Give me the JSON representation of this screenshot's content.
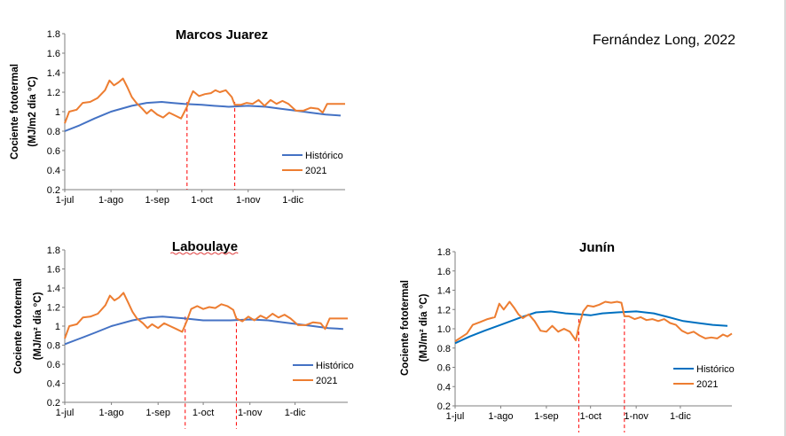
{
  "credit": "Fernández Long, 2022",
  "chart_data": [
    {
      "type": "line",
      "title": "Marcos Juarez",
      "title_underline": false,
      "ylabel_line1": "Cociente fototermal",
      "ylabel_line2": "(MJ/m2 día °C)",
      "ylim": [
        0.2,
        1.8
      ],
      "yticks": [
        "0.2",
        "0.4",
        "0.6",
        "0.8",
        "1",
        "1.2",
        "1.4",
        "1.6",
        "1.8"
      ],
      "xdomain": [
        0,
        188
      ],
      "xticks": [
        {
          "label": "1-jul",
          "x": 0
        },
        {
          "label": "1-ago",
          "x": 31
        },
        {
          "label": "1-sep",
          "x": 62
        },
        {
          "label": "1-oct",
          "x": 92
        },
        {
          "label": "1-nov",
          "x": 123
        },
        {
          "label": "1-dic",
          "x": 153
        }
      ],
      "vlines": [
        82,
        114
      ],
      "series": [
        {
          "name": "Histórico",
          "color": "#4472c4",
          "points": [
            [
              0,
              0.8
            ],
            [
              10,
              0.86
            ],
            [
              20,
              0.93
            ],
            [
              31,
              1.0
            ],
            [
              45,
              1.06
            ],
            [
              55,
              1.09
            ],
            [
              65,
              1.1
            ],
            [
              72,
              1.09
            ],
            [
              80,
              1.08
            ],
            [
              92,
              1.07
            ],
            [
              100,
              1.06
            ],
            [
              110,
              1.05
            ],
            [
              123,
              1.06
            ],
            [
              135,
              1.05
            ],
            [
              145,
              1.03
            ],
            [
              155,
              1.01
            ],
            [
              165,
              0.99
            ],
            [
              175,
              0.97
            ],
            [
              185,
              0.96
            ]
          ]
        },
        {
          "name": "2021",
          "color": "#ed7d31",
          "points": [
            [
              0,
              0.88
            ],
            [
              3,
              1.0
            ],
            [
              8,
              1.02
            ],
            [
              12,
              1.09
            ],
            [
              17,
              1.1
            ],
            [
              22,
              1.14
            ],
            [
              27,
              1.22
            ],
            [
              30,
              1.32
            ],
            [
              33,
              1.27
            ],
            [
              36,
              1.3
            ],
            [
              39,
              1.34
            ],
            [
              42,
              1.25
            ],
            [
              45,
              1.15
            ],
            [
              48,
              1.09
            ],
            [
              52,
              1.03
            ],
            [
              55,
              0.98
            ],
            [
              58,
              1.02
            ],
            [
              62,
              0.97
            ],
            [
              66,
              0.94
            ],
            [
              70,
              0.99
            ],
            [
              74,
              0.96
            ],
            [
              78,
              0.93
            ],
            [
              82,
              1.05
            ],
            [
              84,
              1.14
            ],
            [
              86,
              1.21
            ],
            [
              90,
              1.16
            ],
            [
              94,
              1.18
            ],
            [
              98,
              1.19
            ],
            [
              101,
              1.22
            ],
            [
              104,
              1.2
            ],
            [
              108,
              1.22
            ],
            [
              112,
              1.15
            ],
            [
              114,
              1.07
            ],
            [
              118,
              1.07
            ],
            [
              122,
              1.09
            ],
            [
              126,
              1.08
            ],
            [
              130,
              1.12
            ],
            [
              134,
              1.06
            ],
            [
              138,
              1.12
            ],
            [
              142,
              1.08
            ],
            [
              146,
              1.11
            ],
            [
              150,
              1.08
            ],
            [
              155,
              1.01
            ],
            [
              160,
              1.01
            ],
            [
              165,
              1.04
            ],
            [
              170,
              1.03
            ],
            [
              173,
              0.99
            ],
            [
              176,
              1.08
            ],
            [
              188,
              1.08
            ]
          ]
        }
      ],
      "legend": "right"
    },
    {
      "type": "line",
      "title": "Laboulaye",
      "title_underline": true,
      "ylabel_line1": "Cociente fototermal",
      "ylabel_line2": "(MJ/m² día °C)",
      "ylim": [
        0.2,
        1.8
      ],
      "yticks": [
        "0.2",
        "0.4",
        "0.6",
        "0.8",
        "1",
        "1.2",
        "1.4",
        "1.6",
        "1.8"
      ],
      "xdomain": [
        0,
        188
      ],
      "xticks": [
        {
          "label": "1-jul",
          "x": 0
        },
        {
          "label": "1-ago",
          "x": 31
        },
        {
          "label": "1-sep",
          "x": 62
        },
        {
          "label": "1-oct",
          "x": 92
        },
        {
          "label": "1-nov",
          "x": 123
        },
        {
          "label": "1-dic",
          "x": 153
        }
      ],
      "vlines": [
        80,
        114
      ],
      "series": [
        {
          "name": "Histórico",
          "color": "#4472c4",
          "points": [
            [
              0,
              0.81
            ],
            [
              10,
              0.87
            ],
            [
              20,
              0.93
            ],
            [
              31,
              1.0
            ],
            [
              45,
              1.06
            ],
            [
              55,
              1.09
            ],
            [
              65,
              1.1
            ],
            [
              72,
              1.09
            ],
            [
              80,
              1.08
            ],
            [
              92,
              1.06
            ],
            [
              100,
              1.06
            ],
            [
              110,
              1.06
            ],
            [
              123,
              1.07
            ],
            [
              135,
              1.06
            ],
            [
              145,
              1.04
            ],
            [
              155,
              1.02
            ],
            [
              165,
              1.0
            ],
            [
              175,
              0.98
            ],
            [
              185,
              0.97
            ]
          ]
        },
        {
          "name": "2021",
          "color": "#ed7d31",
          "points": [
            [
              0,
              0.87
            ],
            [
              3,
              1.0
            ],
            [
              8,
              1.02
            ],
            [
              12,
              1.09
            ],
            [
              17,
              1.1
            ],
            [
              22,
              1.13
            ],
            [
              27,
              1.22
            ],
            [
              30,
              1.32
            ],
            [
              33,
              1.27
            ],
            [
              36,
              1.3
            ],
            [
              39,
              1.35
            ],
            [
              42,
              1.25
            ],
            [
              45,
              1.15
            ],
            [
              48,
              1.08
            ],
            [
              52,
              1.03
            ],
            [
              55,
              0.98
            ],
            [
              58,
              1.02
            ],
            [
              62,
              0.98
            ],
            [
              66,
              1.03
            ],
            [
              70,
              1.0
            ],
            [
              74,
              0.97
            ],
            [
              78,
              0.94
            ],
            [
              81,
              1.05
            ],
            [
              84,
              1.18
            ],
            [
              88,
              1.21
            ],
            [
              92,
              1.18
            ],
            [
              96,
              1.2
            ],
            [
              100,
              1.19
            ],
            [
              104,
              1.23
            ],
            [
              108,
              1.21
            ],
            [
              112,
              1.17
            ],
            [
              114,
              1.08
            ],
            [
              118,
              1.05
            ],
            [
              122,
              1.1
            ],
            [
              126,
              1.06
            ],
            [
              130,
              1.11
            ],
            [
              134,
              1.08
            ],
            [
              138,
              1.13
            ],
            [
              142,
              1.09
            ],
            [
              146,
              1.12
            ],
            [
              150,
              1.08
            ],
            [
              155,
              1.01
            ],
            [
              160,
              1.01
            ],
            [
              165,
              1.04
            ],
            [
              170,
              1.03
            ],
            [
              173,
              0.97
            ],
            [
              176,
              1.08
            ],
            [
              188,
              1.08
            ]
          ]
        }
      ],
      "legend": "right"
    },
    {
      "type": "line",
      "title": "Junín",
      "title_underline": false,
      "ylabel_line1": "Cociente fototermal",
      "ylabel_line2": "(MJ/m² día °C)",
      "ylim": [
        0.2,
        1.8
      ],
      "yticks": [
        "0.2",
        "0.4",
        "0.6",
        "0.8",
        "1.0",
        "1.2",
        "1.4",
        "1.6",
        "1.8"
      ],
      "xdomain": [
        0,
        188
      ],
      "xticks": [
        {
          "label": "1-jul",
          "x": 0
        },
        {
          "label": "1-ago",
          "x": 31
        },
        {
          "label": "1-sep",
          "x": 62
        },
        {
          "label": "1-oct",
          "x": 92
        },
        {
          "label": "1-nov",
          "x": 123
        },
        {
          "label": "1-dic",
          "x": 153
        }
      ],
      "vlines": [
        84,
        115
      ],
      "series": [
        {
          "name": "Histórico",
          "color": "#0070c0",
          "points": [
            [
              0,
              0.85
            ],
            [
              10,
              0.92
            ],
            [
              20,
              0.98
            ],
            [
              31,
              1.04
            ],
            [
              45,
              1.12
            ],
            [
              55,
              1.17
            ],
            [
              65,
              1.18
            ],
            [
              75,
              1.16
            ],
            [
              85,
              1.15
            ],
            [
              92,
              1.14
            ],
            [
              100,
              1.16
            ],
            [
              110,
              1.17
            ],
            [
              123,
              1.18
            ],
            [
              135,
              1.16
            ],
            [
              145,
              1.12
            ],
            [
              155,
              1.08
            ],
            [
              165,
              1.06
            ],
            [
              175,
              1.04
            ],
            [
              185,
              1.03
            ]
          ]
        },
        {
          "name": "2021",
          "color": "#ed7d31",
          "points": [
            [
              0,
              0.87
            ],
            [
              4,
              0.91
            ],
            [
              8,
              0.95
            ],
            [
              12,
              1.04
            ],
            [
              17,
              1.07
            ],
            [
              22,
              1.1
            ],
            [
              27,
              1.12
            ],
            [
              30,
              1.26
            ],
            [
              33,
              1.2
            ],
            [
              37,
              1.28
            ],
            [
              40,
              1.22
            ],
            [
              43,
              1.15
            ],
            [
              46,
              1.11
            ],
            [
              50,
              1.15
            ],
            [
              54,
              1.08
            ],
            [
              58,
              0.98
            ],
            [
              62,
              0.97
            ],
            [
              66,
              1.03
            ],
            [
              70,
              0.97
            ],
            [
              74,
              1.0
            ],
            [
              78,
              0.97
            ],
            [
              82,
              0.88
            ],
            [
              84,
              1.02
            ],
            [
              87,
              1.18
            ],
            [
              90,
              1.24
            ],
            [
              94,
              1.23
            ],
            [
              98,
              1.25
            ],
            [
              102,
              1.28
            ],
            [
              106,
              1.27
            ],
            [
              110,
              1.28
            ],
            [
              113,
              1.27
            ],
            [
              115,
              1.13
            ],
            [
              118,
              1.13
            ],
            [
              122,
              1.1
            ],
            [
              126,
              1.12
            ],
            [
              130,
              1.09
            ],
            [
              134,
              1.1
            ],
            [
              138,
              1.08
            ],
            [
              142,
              1.1
            ],
            [
              146,
              1.06
            ],
            [
              150,
              1.04
            ],
            [
              154,
              0.98
            ],
            [
              158,
              0.95
            ],
            [
              162,
              0.97
            ],
            [
              166,
              0.93
            ],
            [
              170,
              0.9
            ],
            [
              174,
              0.91
            ],
            [
              178,
              0.9
            ],
            [
              182,
              0.94
            ],
            [
              185,
              0.92
            ],
            [
              188,
              0.95
            ]
          ]
        }
      ],
      "legend": "right"
    }
  ]
}
